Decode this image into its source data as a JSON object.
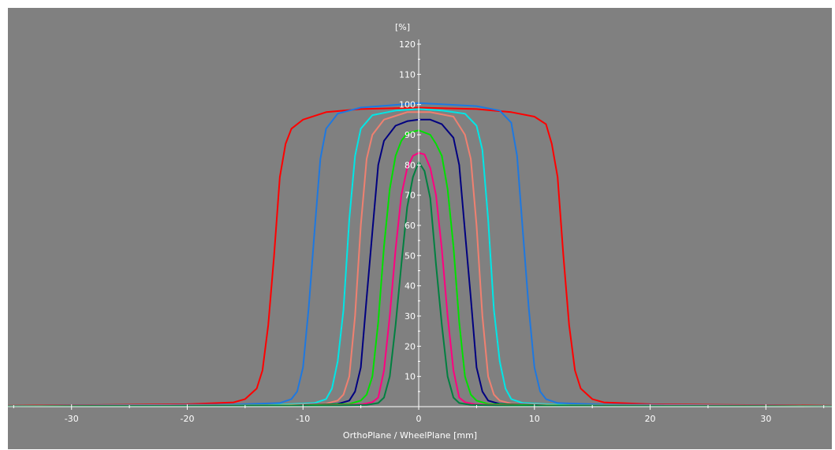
{
  "chart_data": {
    "type": "line",
    "title": "",
    "xlabel": "OrthoPlane / WheelPlane [mm]",
    "ylabel": "[%]",
    "xlim": [
      -35.5,
      35.7
    ],
    "ylim": [
      0,
      120
    ],
    "x_ticks": [
      -30,
      -20,
      -10,
      0,
      10,
      20,
      30
    ],
    "y_ticks": [
      10,
      20,
      30,
      40,
      50,
      60,
      70,
      80,
      90,
      100,
      110,
      120
    ],
    "grid": false,
    "legend": "none",
    "series": [
      {
        "color": "#ff0000",
        "points": [
          [
            -35.5,
            0.3
          ],
          [
            -20,
            0.8
          ],
          [
            -16,
            1.4
          ],
          [
            -15,
            2.5
          ],
          [
            -14,
            6
          ],
          [
            -13.5,
            12
          ],
          [
            -13,
            27
          ],
          [
            -12.5,
            50
          ],
          [
            -12,
            76
          ],
          [
            -11.5,
            87
          ],
          [
            -11,
            92
          ],
          [
            -10,
            95
          ],
          [
            -8,
            97.5
          ],
          [
            -5,
            98.5
          ],
          [
            0,
            99
          ],
          [
            5,
            98.5
          ],
          [
            8,
            97.5
          ],
          [
            10,
            96
          ],
          [
            11,
            93.5
          ],
          [
            11.5,
            87
          ],
          [
            12,
            76
          ],
          [
            12.5,
            50
          ],
          [
            13,
            27
          ],
          [
            13.5,
            12
          ],
          [
            14,
            6
          ],
          [
            15,
            2.5
          ],
          [
            16,
            1.4
          ],
          [
            20,
            0.8
          ],
          [
            35.7,
            0.3
          ]
        ]
      },
      {
        "color": "#1e78e0",
        "points": [
          [
            -35.5,
            0.2
          ],
          [
            -16,
            0.7
          ],
          [
            -12,
            1.2
          ],
          [
            -11,
            2.5
          ],
          [
            -10.5,
            5
          ],
          [
            -10,
            13
          ],
          [
            -9.5,
            33
          ],
          [
            -9,
            58
          ],
          [
            -8.5,
            82
          ],
          [
            -8,
            92
          ],
          [
            -7,
            97
          ],
          [
            -5,
            99
          ],
          [
            0,
            100.5
          ],
          [
            5,
            99.5
          ],
          [
            7,
            98
          ],
          [
            8,
            94
          ],
          [
            8.5,
            83
          ],
          [
            9,
            58
          ],
          [
            9.5,
            33
          ],
          [
            10,
            13
          ],
          [
            10.5,
            5
          ],
          [
            11,
            2.5
          ],
          [
            12,
            1.2
          ],
          [
            16,
            0.7
          ],
          [
            35.7,
            0.2
          ]
        ]
      },
      {
        "color": "#00e6e6",
        "points": [
          [
            -35.5,
            0.2
          ],
          [
            -13,
            0.5
          ],
          [
            -9,
            1.2
          ],
          [
            -8,
            2.5
          ],
          [
            -7.5,
            6
          ],
          [
            -7,
            15
          ],
          [
            -6.5,
            32
          ],
          [
            -6,
            62
          ],
          [
            -5.5,
            83
          ],
          [
            -5,
            92
          ],
          [
            -4,
            96.5
          ],
          [
            -2,
            98
          ],
          [
            0,
            98.5
          ],
          [
            2,
            98
          ],
          [
            4,
            97
          ],
          [
            5,
            93
          ],
          [
            5.5,
            85
          ],
          [
            6,
            62
          ],
          [
            6.5,
            32
          ],
          [
            7,
            15
          ],
          [
            7.5,
            6
          ],
          [
            8,
            2.5
          ],
          [
            9,
            1.2
          ],
          [
            13,
            0.5
          ],
          [
            35.7,
            0.2
          ]
        ]
      },
      {
        "color": "#f08070",
        "points": [
          [
            -35.5,
            0.2
          ],
          [
            -12,
            0.5
          ],
          [
            -8,
            1
          ],
          [
            -7,
            2
          ],
          [
            -6.5,
            4
          ],
          [
            -6,
            10
          ],
          [
            -5.5,
            30
          ],
          [
            -5,
            60
          ],
          [
            -4.5,
            82
          ],
          [
            -4,
            90
          ],
          [
            -3,
            95
          ],
          [
            -1,
            97.5
          ],
          [
            0,
            97.5
          ],
          [
            1,
            97.5
          ],
          [
            3,
            96
          ],
          [
            4,
            90
          ],
          [
            4.5,
            82
          ],
          [
            5,
            60
          ],
          [
            5.5,
            30
          ],
          [
            6,
            10
          ],
          [
            6.5,
            4
          ],
          [
            7,
            2
          ],
          [
            8,
            1
          ],
          [
            12,
            0.5
          ],
          [
            35.7,
            0.2
          ]
        ]
      },
      {
        "color": "#000080",
        "points": [
          [
            -35.5,
            0.1
          ],
          [
            -11,
            0.4
          ],
          [
            -7,
            0.9
          ],
          [
            -6,
            2
          ],
          [
            -5.5,
            5
          ],
          [
            -5,
            13
          ],
          [
            -4.5,
            36
          ],
          [
            -4,
            58
          ],
          [
            -3.5,
            80
          ],
          [
            -3,
            88
          ],
          [
            -2,
            93
          ],
          [
            -1,
            94.5
          ],
          [
            0,
            95
          ],
          [
            1,
            95
          ],
          [
            2,
            93.5
          ],
          [
            3,
            89
          ],
          [
            3.5,
            80
          ],
          [
            4,
            58
          ],
          [
            4.5,
            36
          ],
          [
            5,
            13
          ],
          [
            5.5,
            5
          ],
          [
            6,
            2
          ],
          [
            7,
            0.9
          ],
          [
            11,
            0.4
          ],
          [
            35.7,
            0.1
          ]
        ]
      },
      {
        "color": "#00e000",
        "points": [
          [
            -35.5,
            0.1
          ],
          [
            -10,
            0.4
          ],
          [
            -6,
            0.9
          ],
          [
            -5,
            2
          ],
          [
            -4.5,
            4
          ],
          [
            -4,
            10
          ],
          [
            -3.5,
            28
          ],
          [
            -3,
            53
          ],
          [
            -2.5,
            72
          ],
          [
            -2,
            83
          ],
          [
            -1.5,
            88
          ],
          [
            -1,
            90.5
          ],
          [
            0,
            91.5
          ],
          [
            1,
            90
          ],
          [
            1.5,
            87
          ],
          [
            2,
            83
          ],
          [
            2.5,
            72
          ],
          [
            3,
            53
          ],
          [
            3.5,
            28
          ],
          [
            4,
            10
          ],
          [
            4.5,
            4
          ],
          [
            5,
            2
          ],
          [
            6,
            0.9
          ],
          [
            10,
            0.4
          ],
          [
            35.7,
            0.1
          ]
        ]
      },
      {
        "color": "#ff0080",
        "points": [
          [
            -35.5,
            0.1
          ],
          [
            -9,
            0.3
          ],
          [
            -5,
            0.7
          ],
          [
            -4,
            1.5
          ],
          [
            -3.5,
            3
          ],
          [
            -3,
            12
          ],
          [
            -2.5,
            30
          ],
          [
            -2,
            52
          ],
          [
            -1.5,
            70
          ],
          [
            -1,
            79
          ],
          [
            -0.5,
            83
          ],
          [
            0,
            84
          ],
          [
            0.5,
            83.5
          ],
          [
            1,
            79
          ],
          [
            1.5,
            70
          ],
          [
            2,
            52
          ],
          [
            2.5,
            30
          ],
          [
            3,
            12
          ],
          [
            3.5,
            3
          ],
          [
            4,
            1.5
          ],
          [
            5,
            0.7
          ],
          [
            9,
            0.3
          ],
          [
            35.7,
            0.1
          ]
        ]
      },
      {
        "color": "#008040",
        "points": [
          [
            -35.5,
            0.1
          ],
          [
            -8,
            0.3
          ],
          [
            -4.5,
            0.6
          ],
          [
            -3.5,
            1.2
          ],
          [
            -3,
            3
          ],
          [
            -2.5,
            10
          ],
          [
            -2,
            27
          ],
          [
            -1.5,
            47
          ],
          [
            -1,
            66
          ],
          [
            -0.5,
            76
          ],
          [
            0,
            81
          ],
          [
            0.5,
            78
          ],
          [
            1,
            69
          ],
          [
            1.5,
            47
          ],
          [
            2,
            27
          ],
          [
            2.5,
            10
          ],
          [
            3,
            3
          ],
          [
            3.5,
            1.2
          ],
          [
            4.5,
            0.6
          ],
          [
            8,
            0.3
          ],
          [
            35.7,
            0.1
          ]
        ]
      }
    ]
  }
}
